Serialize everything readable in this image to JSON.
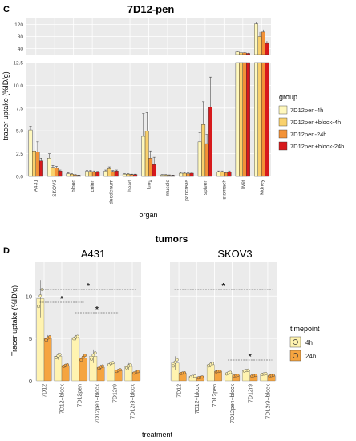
{
  "panels": {
    "c_letter": "C",
    "d_letter": "D"
  },
  "colors": {
    "panel_bg": "#ebebeb",
    "grid": "#ffffff",
    "c_series": [
      "#fff8bd",
      "#f9d16d",
      "#f39237",
      "#d7191c"
    ],
    "d_series": [
      "#fff3b0",
      "#f5a440"
    ]
  },
  "chart_data": [
    {
      "type": "bar",
      "title": "7D12-pen",
      "xlabel": "organ",
      "ylabel": "tracer uptake (%ID/g)",
      "axis_break": true,
      "ylim_upper": [
        20,
        140
      ],
      "yticks_upper": [
        "120",
        "80",
        "40"
      ],
      "ylim_lower": [
        0,
        12.5
      ],
      "yticks_lower": [
        "0.0",
        "2.5",
        "5.0",
        "7.5",
        "10.0",
        "12.5"
      ],
      "grid": true,
      "legend_position": "right",
      "legend_title": "group",
      "categories": [
        "A431",
        "SKOV3",
        "blood",
        "colon",
        "duodenum",
        "heart",
        "lung",
        "muscle",
        "pancreas",
        "spleen",
        "stomach",
        "liver",
        "kidney"
      ],
      "series": [
        {
          "name": "7D12pen-4h",
          "values": [
            5.1,
            2.0,
            0.3,
            0.55,
            0.6,
            0.25,
            4.4,
            0.15,
            0.35,
            3.8,
            0.5,
            29,
            122
          ],
          "errors": [
            0.4,
            0.5,
            0.1,
            0.1,
            0.1,
            0.05,
            2.5,
            0.05,
            0.1,
            1.0,
            0.1,
            2,
            5
          ]
        },
        {
          "name": "7D12pen+block-4h",
          "values": [
            2.8,
            1.0,
            0.25,
            0.55,
            0.85,
            0.25,
            5.0,
            0.15,
            0.35,
            5.7,
            0.5,
            26,
            80
          ],
          "errors": [
            1.2,
            0.2,
            0.05,
            0.1,
            0.2,
            0.05,
            2.0,
            0.05,
            0.1,
            2.5,
            0.1,
            2,
            15
          ]
        },
        {
          "name": "7D12pen-24h",
          "values": [
            2.7,
            0.9,
            0.15,
            0.5,
            0.55,
            0.2,
            2.0,
            0.12,
            0.3,
            3.6,
            0.4,
            26,
            95
          ],
          "errors": [
            1.1,
            0.2,
            0.05,
            0.1,
            0.1,
            0.05,
            0.8,
            0.05,
            0.1,
            1.0,
            0.1,
            2,
            8
          ]
        },
        {
          "name": "7D12pen+block-24h",
          "values": [
            1.7,
            0.6,
            0.1,
            0.45,
            0.6,
            0.2,
            1.3,
            0.1,
            0.35,
            7.6,
            0.5,
            24,
            57
          ],
          "errors": [
            0.3,
            0.1,
            0.05,
            0.1,
            0.1,
            0.05,
            0.8,
            0.05,
            0.1,
            3.3,
            0.1,
            2,
            8
          ]
        }
      ]
    },
    {
      "type": "bar",
      "title": "tumors",
      "xlabel": "treatment",
      "ylabel": "Tracer uptake (%ID/g)",
      "ylim": [
        0,
        14
      ],
      "yticks": [
        0,
        5,
        10
      ],
      "grid": true,
      "legend_position": "right",
      "legend_title": "timepoint",
      "facets": [
        "A431",
        "SKOV3"
      ],
      "categories": [
        "7D12",
        "7D12+block",
        "7D12pen",
        "7D12pen+block",
        "7D12r9",
        "7D12r9+block"
      ],
      "series_names": [
        "4h",
        "24h"
      ],
      "facet_values": {
        "A431": {
          "4h": [
            9.7,
            2.9,
            5.1,
            2.9,
            2.0,
            1.7
          ],
          "24h": [
            5.0,
            1.8,
            2.7,
            1.6,
            1.2,
            1.0
          ]
        },
        "SKOV3": {
          "4h": [
            2.1,
            0.5,
            1.9,
            0.9,
            1.2,
            0.8
          ],
          "24h": [
            0.9,
            0.4,
            1.1,
            0.6,
            0.6,
            0.6
          ]
        }
      },
      "facet_errors": {
        "A431": {
          "4h": [
            2.2,
            0.4,
            0.3,
            0.8,
            0.3,
            0.4
          ],
          "24h": [
            0.4,
            0.2,
            0.6,
            0.3,
            0.2,
            0.2
          ]
        },
        "SKOV3": {
          "4h": [
            0.8,
            0.1,
            0.3,
            0.2,
            0.1,
            0.1
          ],
          "24h": [
            0.1,
            0.1,
            0.1,
            0.1,
            0.1,
            0.1
          ]
        }
      },
      "significance_marks": [
        {
          "facet": "A431",
          "from": "7D12",
          "to": "7D12r9+block",
          "label": "*"
        },
        {
          "facet": "A431",
          "from": "7D12",
          "to": "7D12pen",
          "label": "*"
        },
        {
          "facet": "A431",
          "from": "7D12pen",
          "to": "7D12r9",
          "label": "*"
        },
        {
          "facet": "SKOV3",
          "from": "7D12",
          "to": "7D12r9+block",
          "label": "*"
        },
        {
          "facet": "SKOV3",
          "from": "7D12pen+block",
          "to": "7D12r9+block",
          "label": "*"
        }
      ]
    }
  ]
}
